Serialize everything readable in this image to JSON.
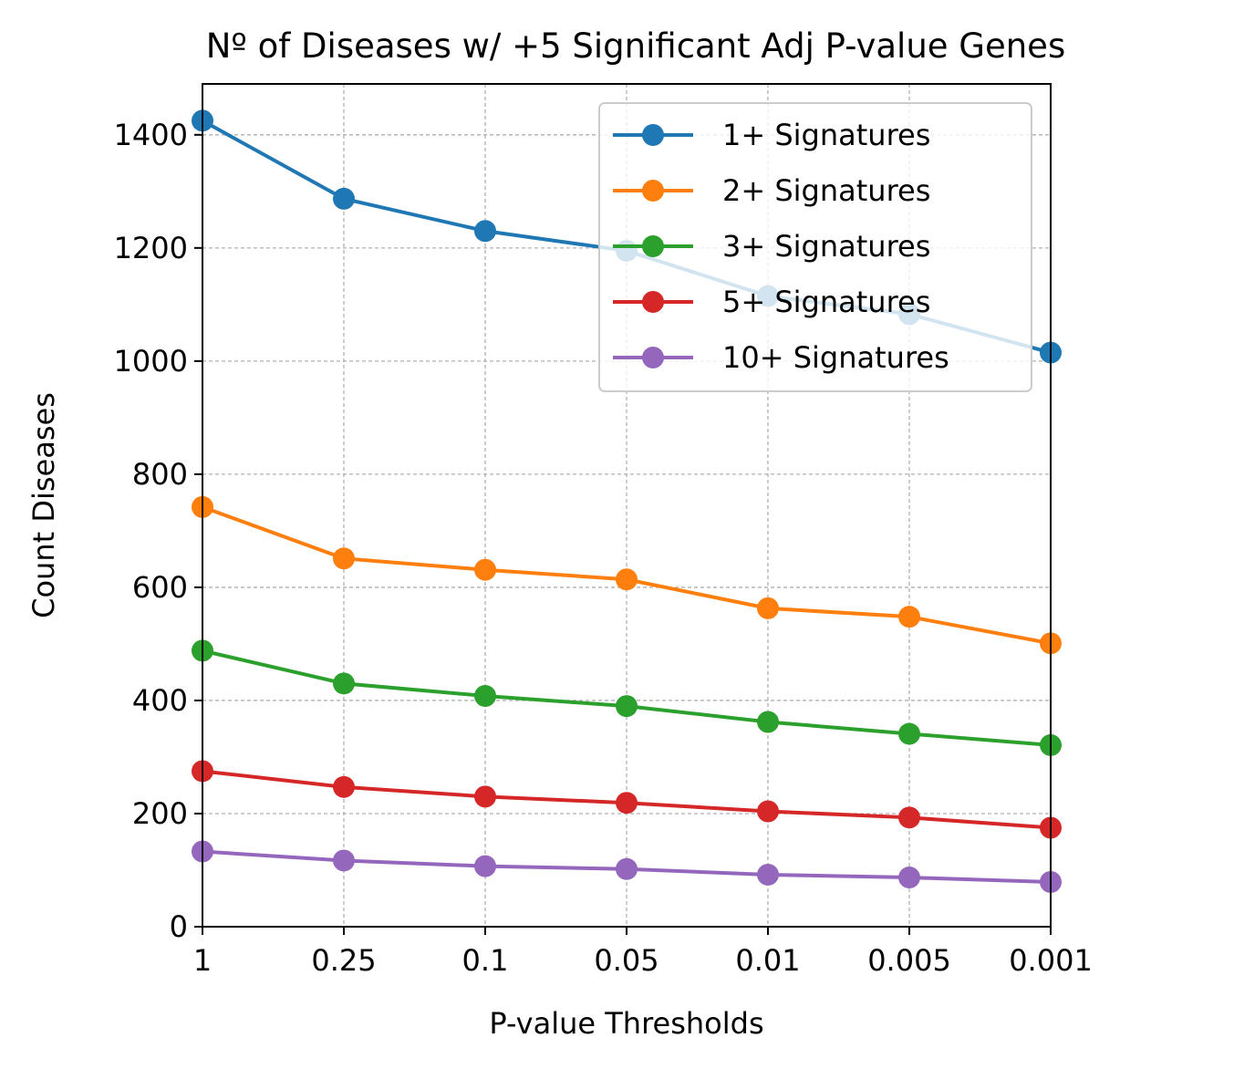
{
  "chart_data": {
    "type": "line",
    "title": "Nº of Diseases w/ +5 Significant Adj P-value Genes",
    "xlabel": "P-value Thresholds",
    "ylabel": "Count Diseases",
    "categories": [
      "1",
      "0.25",
      "0.1",
      "0.05",
      "0.01",
      "0.005",
      "0.001"
    ],
    "ylim": [
      0,
      1490
    ],
    "yticks": [
      0,
      200,
      400,
      600,
      800,
      1000,
      1200,
      1400
    ],
    "grid": true,
    "legend_position": "top-right",
    "series": [
      {
        "name": "1+ Signatures",
        "color": "#1f77b4",
        "values": [
          1425,
          1287,
          1230,
          1195,
          1115,
          1083,
          1015
        ]
      },
      {
        "name": "2+ Signatures",
        "color": "#ff7f0e",
        "values": [
          742,
          651,
          631,
          614,
          563,
          548,
          501
        ]
      },
      {
        "name": "3+ Signatures",
        "color": "#2ca02c",
        "values": [
          488,
          430,
          408,
          390,
          362,
          341,
          321
        ]
      },
      {
        "name": "5+ Signatures",
        "color": "#d62728",
        "values": [
          275,
          247,
          230,
          219,
          204,
          193,
          175
        ]
      },
      {
        "name": "10+ Signatures",
        "color": "#9467bd",
        "values": [
          133,
          117,
          107,
          102,
          92,
          87,
          79
        ]
      }
    ]
  }
}
